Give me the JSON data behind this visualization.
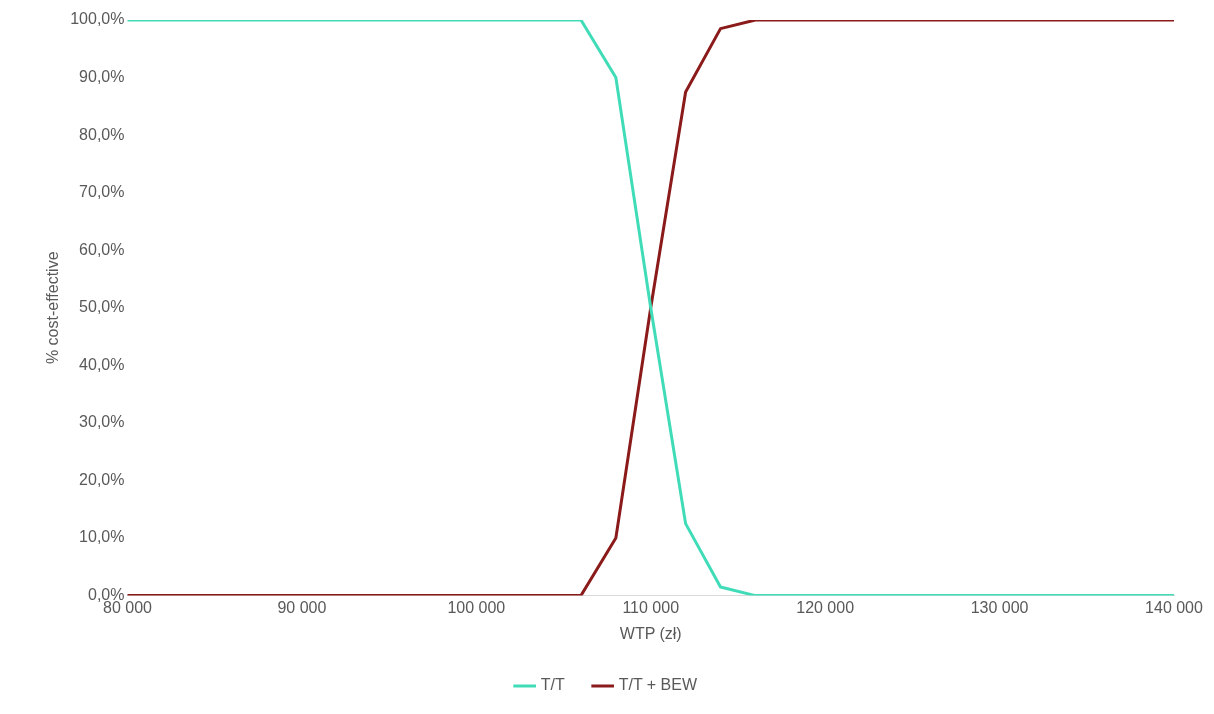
{
  "chart_data": {
    "type": "line",
    "xlabel": "WTP (zł)",
    "ylabel": "% cost-effective",
    "xlim": [
      80000,
      140000
    ],
    "xticks": [
      {
        "value": 80000,
        "label": "80 000"
      },
      {
        "value": 90000,
        "label": "90 000"
      },
      {
        "value": 100000,
        "label": "100 000"
      },
      {
        "value": 110000,
        "label": "110 000"
      },
      {
        "value": 120000,
        "label": "120 000"
      },
      {
        "value": 130000,
        "label": "130 000"
      },
      {
        "value": 140000,
        "label": "140 000"
      }
    ],
    "ylim": [
      0,
      100
    ],
    "yticks": [
      {
        "value": 0,
        "label": "0,0%"
      },
      {
        "value": 10,
        "label": "10,0%"
      },
      {
        "value": 20,
        "label": "20,0%"
      },
      {
        "value": 30,
        "label": "30,0%"
      },
      {
        "value": 40,
        "label": "40,0%"
      },
      {
        "value": 50,
        "label": "50,0%"
      },
      {
        "value": 60,
        "label": "60,0%"
      },
      {
        "value": 70,
        "label": "70,0%"
      },
      {
        "value": 80,
        "label": "80,0%"
      },
      {
        "value": 90,
        "label": "90,0%"
      },
      {
        "value": 100,
        "label": "100,0%"
      }
    ],
    "x": [
      80000,
      106000,
      108000,
      110000,
      112000,
      114000,
      116000,
      140000
    ],
    "series": [
      {
        "name": "T/T",
        "color": "#40dcb8",
        "values": [
          100,
          100,
          90,
          50,
          12.5,
          1.5,
          0,
          0
        ]
      },
      {
        "name": "T/T + BEW",
        "color": "#8b1a1a",
        "values": [
          0,
          0,
          10,
          50,
          87.5,
          98.5,
          100,
          100
        ]
      }
    ],
    "grid": false,
    "legend": "bottom",
    "marker": "none",
    "line_style": "solid"
  }
}
